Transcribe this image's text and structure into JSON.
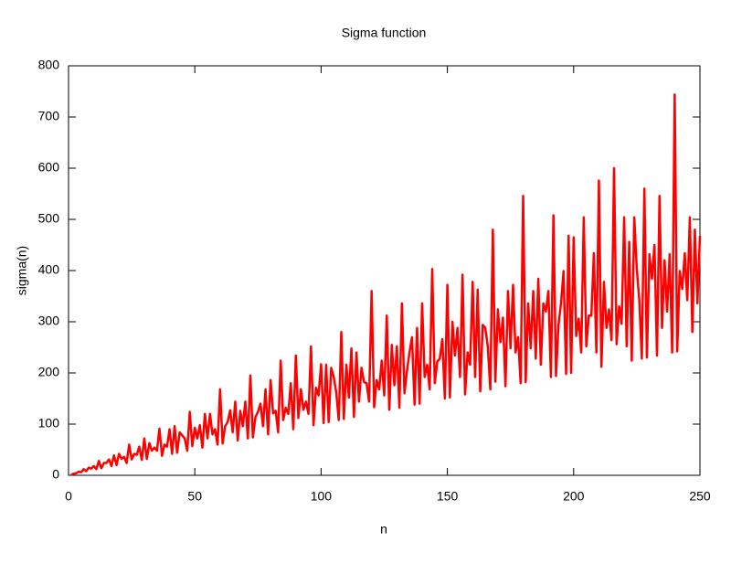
{
  "chart_data": {
    "type": "line",
    "title": "Sigma function",
    "x_label": "n",
    "y_label": "sigma(n)",
    "color": "#ff0000",
    "xlim": [
      0,
      250
    ],
    "xticks": [
      0,
      50,
      100,
      150,
      200,
      250
    ],
    "ylim": [
      0,
      800
    ],
    "yticks": [
      0,
      100,
      200,
      300,
      400,
      500,
      600,
      700,
      800
    ],
    "x": [
      1,
      2,
      3,
      4,
      5,
      6,
      7,
      8,
      9,
      10,
      11,
      12,
      13,
      14,
      15,
      16,
      17,
      18,
      19,
      20,
      21,
      22,
      23,
      24,
      25,
      26,
      27,
      28,
      29,
      30,
      31,
      32,
      33,
      34,
      35,
      36,
      37,
      38,
      39,
      40,
      41,
      42,
      43,
      44,
      45,
      46,
      47,
      48,
      49,
      50,
      51,
      52,
      53,
      54,
      55,
      56,
      57,
      58,
      59,
      60,
      61,
      62,
      63,
      64,
      65,
      66,
      67,
      68,
      69,
      70,
      71,
      72,
      73,
      74,
      75,
      76,
      77,
      78,
      79,
      80,
      81,
      82,
      83,
      84,
      85,
      86,
      87,
      88,
      89,
      90,
      91,
      92,
      93,
      94,
      95,
      96,
      97,
      98,
      99,
      100,
      101,
      102,
      103,
      104,
      105,
      106,
      107,
      108,
      109,
      110,
      111,
      112,
      113,
      114,
      115,
      116,
      117,
      118,
      119,
      120,
      121,
      122,
      123,
      124,
      125,
      126,
      127,
      128,
      129,
      130,
      131,
      132,
      133,
      134,
      135,
      136,
      137,
      138,
      139,
      140,
      141,
      142,
      143,
      144,
      145,
      146,
      147,
      148,
      149,
      150,
      151,
      152,
      153,
      154,
      155,
      156,
      157,
      158,
      159,
      160,
      161,
      162,
      163,
      164,
      165,
      166,
      167,
      168,
      169,
      170,
      171,
      172,
      173,
      174,
      175,
      176,
      177,
      178,
      179,
      180,
      181,
      182,
      183,
      184,
      185,
      186,
      187,
      188,
      189,
      190,
      191,
      192,
      193,
      194,
      195,
      196,
      197,
      198,
      199,
      200,
      201,
      202,
      203,
      204,
      205,
      206,
      207,
      208,
      209,
      210,
      211,
      212,
      213,
      214,
      215,
      216,
      217,
      218,
      219,
      220,
      221,
      222,
      223,
      224,
      225,
      226,
      227,
      228,
      229,
      230,
      231,
      232,
      233,
      234,
      235,
      236,
      237,
      238,
      239,
      240,
      241,
      242,
      243,
      244,
      245,
      246,
      247,
      248,
      249,
      250
    ],
    "values": [
      1,
      3,
      4,
      7,
      6,
      12,
      8,
      15,
      13,
      18,
      12,
      28,
      14,
      24,
      24,
      31,
      18,
      39,
      20,
      42,
      32,
      36,
      24,
      60,
      31,
      42,
      40,
      56,
      30,
      72,
      32,
      63,
      48,
      54,
      48,
      91,
      38,
      60,
      56,
      90,
      42,
      96,
      44,
      84,
      78,
      72,
      48,
      124,
      57,
      93,
      72,
      98,
      54,
      120,
      72,
      120,
      80,
      90,
      60,
      168,
      62,
      96,
      104,
      127,
      84,
      144,
      68,
      126,
      96,
      144,
      72,
      195,
      74,
      114,
      124,
      140,
      96,
      168,
      80,
      186,
      121,
      126,
      84,
      224,
      108,
      132,
      120,
      180,
      90,
      234,
      112,
      168,
      128,
      144,
      120,
      252,
      98,
      171,
      156,
      217,
      102,
      216,
      104,
      210,
      192,
      162,
      108,
      280,
      110,
      216,
      152,
      248,
      114,
      240,
      144,
      210,
      182,
      180,
      144,
      360,
      133,
      186,
      168,
      224,
      156,
      312,
      128,
      255,
      176,
      252,
      132,
      336,
      160,
      204,
      240,
      270,
      138,
      288,
      140,
      336,
      192,
      216,
      168,
      403,
      180,
      222,
      228,
      266,
      150,
      372,
      152,
      300,
      234,
      288,
      192,
      392,
      158,
      240,
      216,
      378,
      192,
      363,
      164,
      294,
      288,
      252,
      168,
      480,
      183,
      324,
      260,
      308,
      174,
      360,
      248,
      372,
      240,
      270,
      180,
      546,
      182,
      336,
      248,
      360,
      228,
      384,
      216,
      336,
      320,
      360,
      192,
      508,
      194,
      294,
      336,
      399,
      198,
      468,
      200,
      465,
      272,
      306,
      240,
      504,
      252,
      312,
      312,
      434,
      240,
      576,
      212,
      378,
      288,
      324,
      264,
      600,
      256,
      330,
      296,
      504,
      252,
      456,
      224,
      504,
      403,
      342,
      228,
      560,
      230,
      432,
      384,
      450,
      234,
      546,
      288,
      420,
      320,
      432,
      240,
      744,
      242,
      399,
      364,
      434,
      342,
      504,
      280,
      480,
      336,
      468
    ]
  }
}
